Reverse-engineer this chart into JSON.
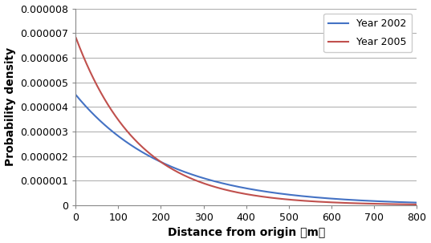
{
  "title": "",
  "xlabel": "Distance from origin 【m】",
  "ylabel": "Probability density",
  "xlim": [
    0,
    800
  ],
  "ylim": [
    0,
    8e-06
  ],
  "xticks": [
    0,
    100,
    200,
    300,
    400,
    500,
    600,
    700,
    800
  ],
  "yticks": [
    0,
    1e-06,
    2e-06,
    3e-06,
    4e-06,
    5e-06,
    6e-06,
    7e-06,
    8e-06
  ],
  "ytick_labels": [
    "0",
    "0.000001",
    "0.000002",
    "0.000003",
    "0.000004",
    "0.000005",
    "0.000006",
    "0.000007",
    "0.000008"
  ],
  "year2002": {
    "label": "Year 2002",
    "color": "#4472C4",
    "a": 4.5e-06,
    "b": 0.0047
  },
  "year2005": {
    "label": "Year 2005",
    "color": "#C0504D",
    "a": 6.85e-06,
    "b": 0.0068
  },
  "legend_loc": "upper right",
  "grid_color": "#AAAAAA",
  "background_color": "#FFFFFF",
  "xlabel_fontsize": 10,
  "ylabel_fontsize": 10,
  "tick_fontsize": 9,
  "legend_fontsize": 9,
  "line_width": 1.5
}
